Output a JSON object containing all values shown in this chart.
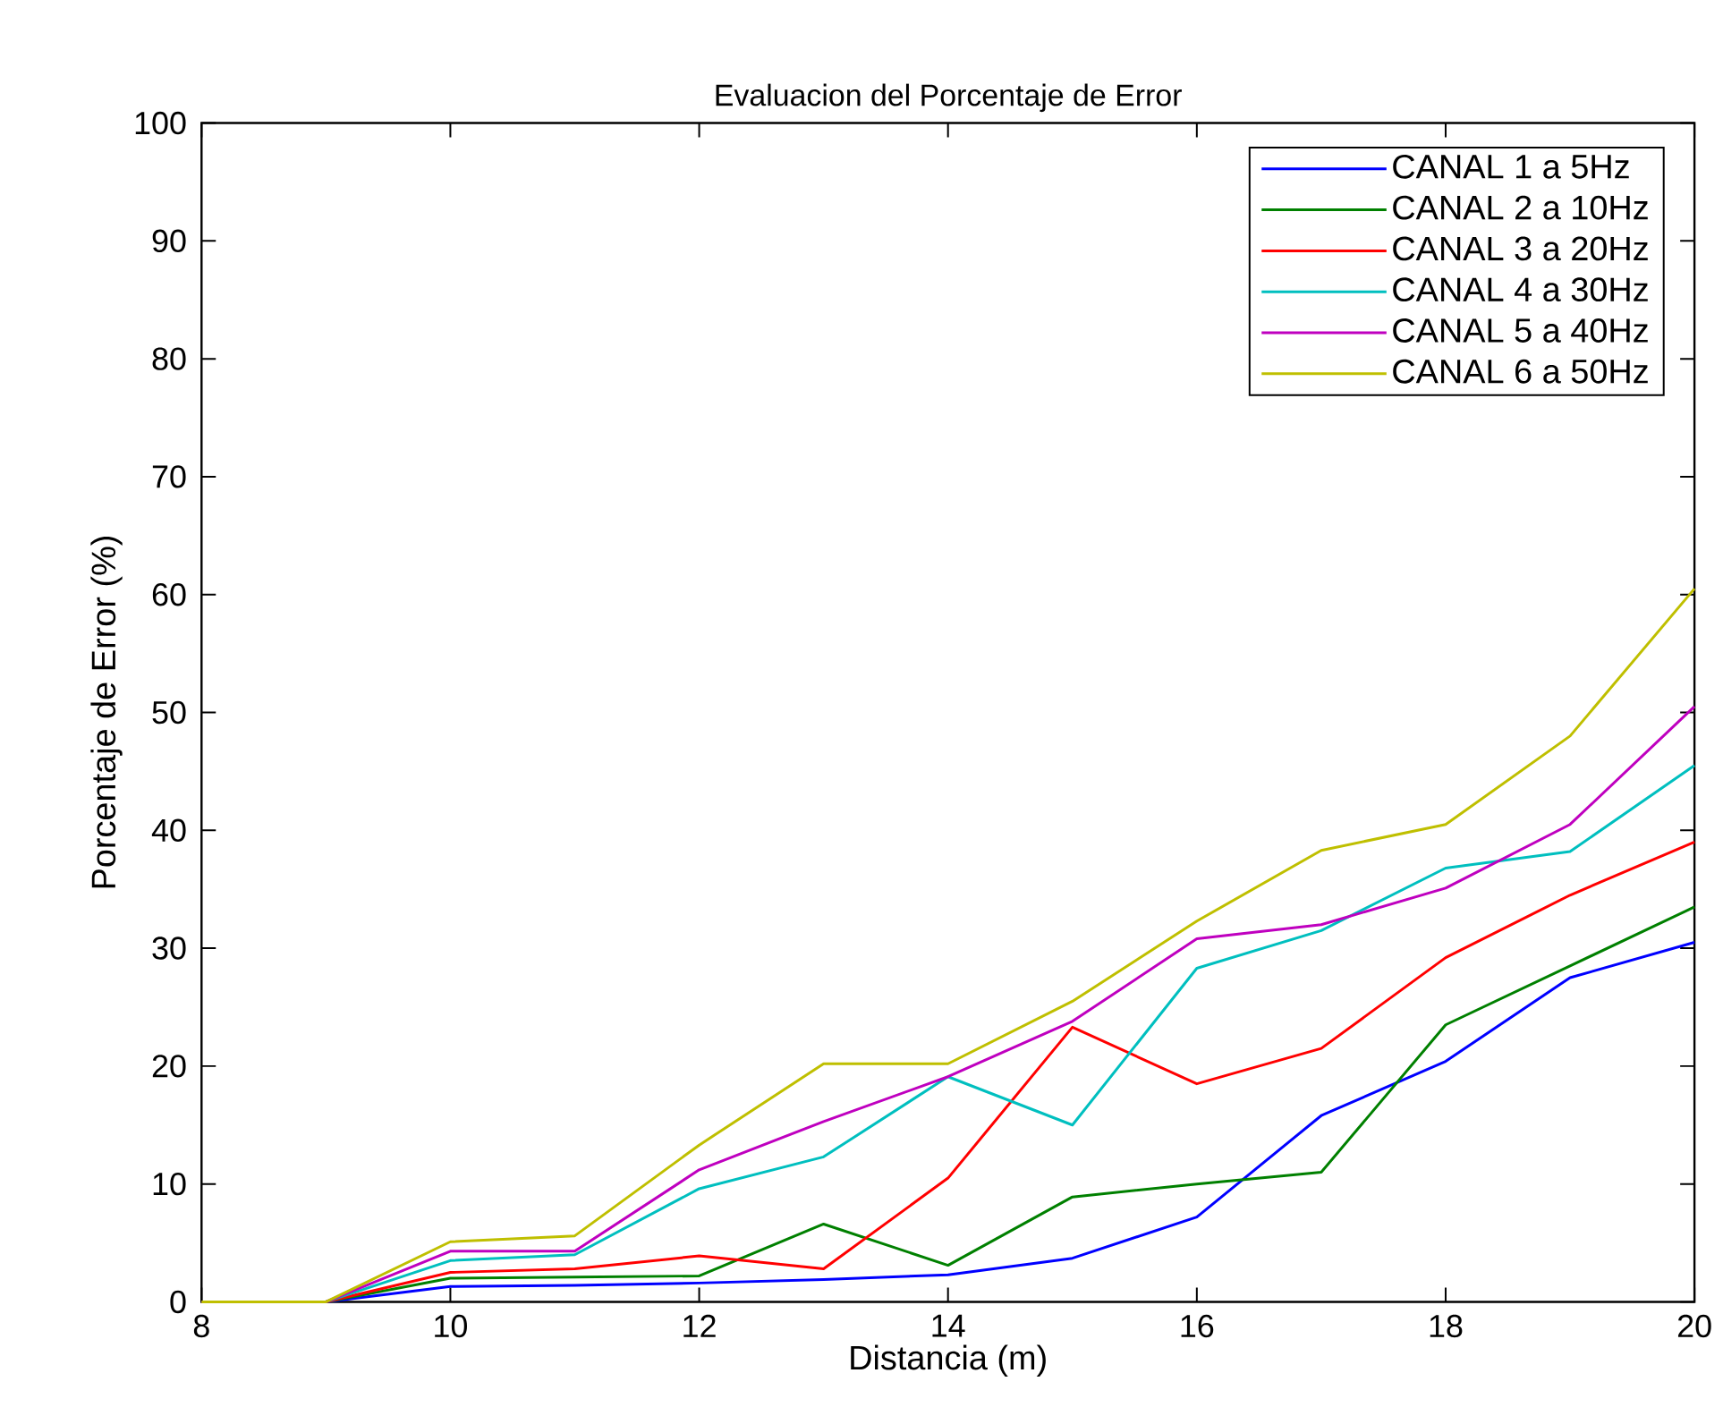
{
  "chart_data": {
    "type": "line",
    "title": "Evaluacion del Porcentaje de Error",
    "xlabel": "Distancia (m)",
    "ylabel": "Porcentaje de Error (%)",
    "x": [
      8,
      9,
      10,
      11,
      12,
      13,
      14,
      15,
      16,
      17,
      18,
      19,
      20
    ],
    "xlim": [
      8,
      20
    ],
    "xticks": [
      8,
      10,
      12,
      14,
      16,
      18,
      20
    ],
    "ylim": [
      0,
      100
    ],
    "yticks": [
      0,
      10,
      20,
      30,
      40,
      50,
      60,
      70,
      80,
      90,
      100
    ],
    "grid": false,
    "legend": "top right",
    "marker": "none",
    "line_style": "solid",
    "series": [
      {
        "name": "CANAL 1 a 5Hz",
        "color": "#0000ff",
        "values": [
          0,
          0,
          1.3,
          1.4,
          1.6,
          1.9,
          2.3,
          3.7,
          7.2,
          15.8,
          20.4,
          27.5,
          30.5
        ]
      },
      {
        "name": "CANAL 2 a 10Hz",
        "color": "#008000",
        "values": [
          0,
          0,
          2.0,
          2.1,
          2.2,
          6.6,
          3.1,
          8.9,
          10.0,
          11.0,
          23.5,
          28.5,
          33.5
        ]
      },
      {
        "name": "CANAL 3 a 20Hz",
        "color": "#ff0000",
        "values": [
          0,
          0,
          2.5,
          2.8,
          3.9,
          2.8,
          10.5,
          23.3,
          18.5,
          21.5,
          29.2,
          34.5,
          39.0
        ]
      },
      {
        "name": "CANAL 4 a 30Hz",
        "color": "#00bfbf",
        "values": [
          0,
          0,
          3.5,
          4.0,
          9.6,
          12.3,
          19.1,
          15.0,
          28.3,
          31.5,
          36.8,
          38.2,
          45.5
        ]
      },
      {
        "name": "CANAL 5 a 40Hz",
        "color": "#bf00bf",
        "values": [
          0,
          0,
          4.3,
          4.3,
          11.2,
          15.3,
          19.1,
          23.8,
          30.8,
          32.0,
          35.1,
          40.5,
          50.5
        ]
      },
      {
        "name": "CANAL 6 a 50Hz",
        "color": "#bfbf00",
        "values": [
          0,
          0,
          5.1,
          5.6,
          13.3,
          20.2,
          20.2,
          25.5,
          32.3,
          38.3,
          40.5,
          48.0,
          60.5
        ]
      }
    ]
  }
}
